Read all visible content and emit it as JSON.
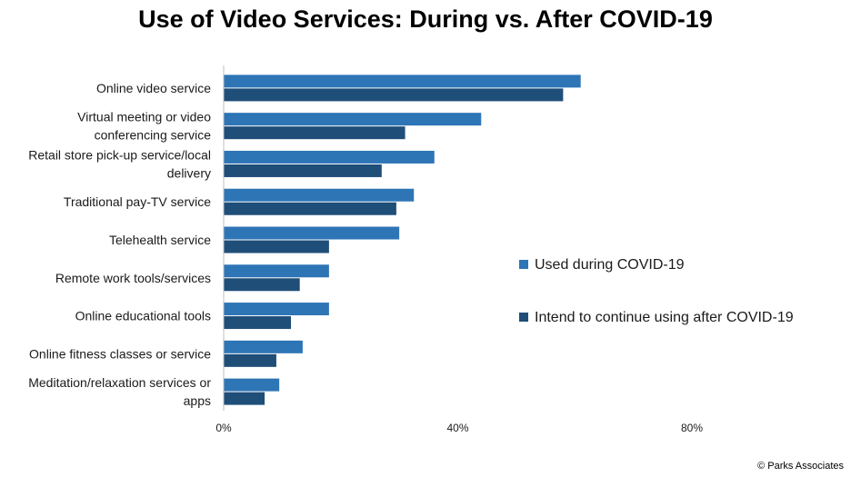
{
  "chart_data": {
    "type": "bar",
    "orientation": "horizontal",
    "title": "Use of Video Services: During vs. After COVID-19",
    "categories": [
      [
        "Online video service"
      ],
      [
        "Virtual meeting or video",
        "conferencing service"
      ],
      [
        "Retail store pick-up service/local",
        "delivery"
      ],
      [
        "Traditional pay-TV service"
      ],
      [
        "Telehealth service"
      ],
      [
        "Remote work tools/services"
      ],
      [
        "Online educational tools"
      ],
      [
        "Online fitness classes or service"
      ],
      [
        "Meditation/relaxation services or",
        "apps"
      ]
    ],
    "series": [
      {
        "name": "Used during COVID-19",
        "color": "#2E75B6",
        "values": [
          61,
          44,
          36,
          32.5,
          30,
          18,
          18,
          13.5,
          9.5
        ]
      },
      {
        "name": "Intend to continue using after COVID-19",
        "color": "#1F4E79",
        "values": [
          58,
          31,
          27,
          29.5,
          18,
          13,
          11.5,
          9,
          7
        ]
      }
    ],
    "xlim": [
      0,
      80
    ],
    "xticks": [
      0,
      40,
      80
    ],
    "xtick_labels": [
      "0%",
      "40%",
      "80%"
    ],
    "xlabel": "",
    "ylabel": "",
    "grid": false,
    "legend_position": "right"
  },
  "footer": {
    "copyright": "© Parks Associates"
  }
}
